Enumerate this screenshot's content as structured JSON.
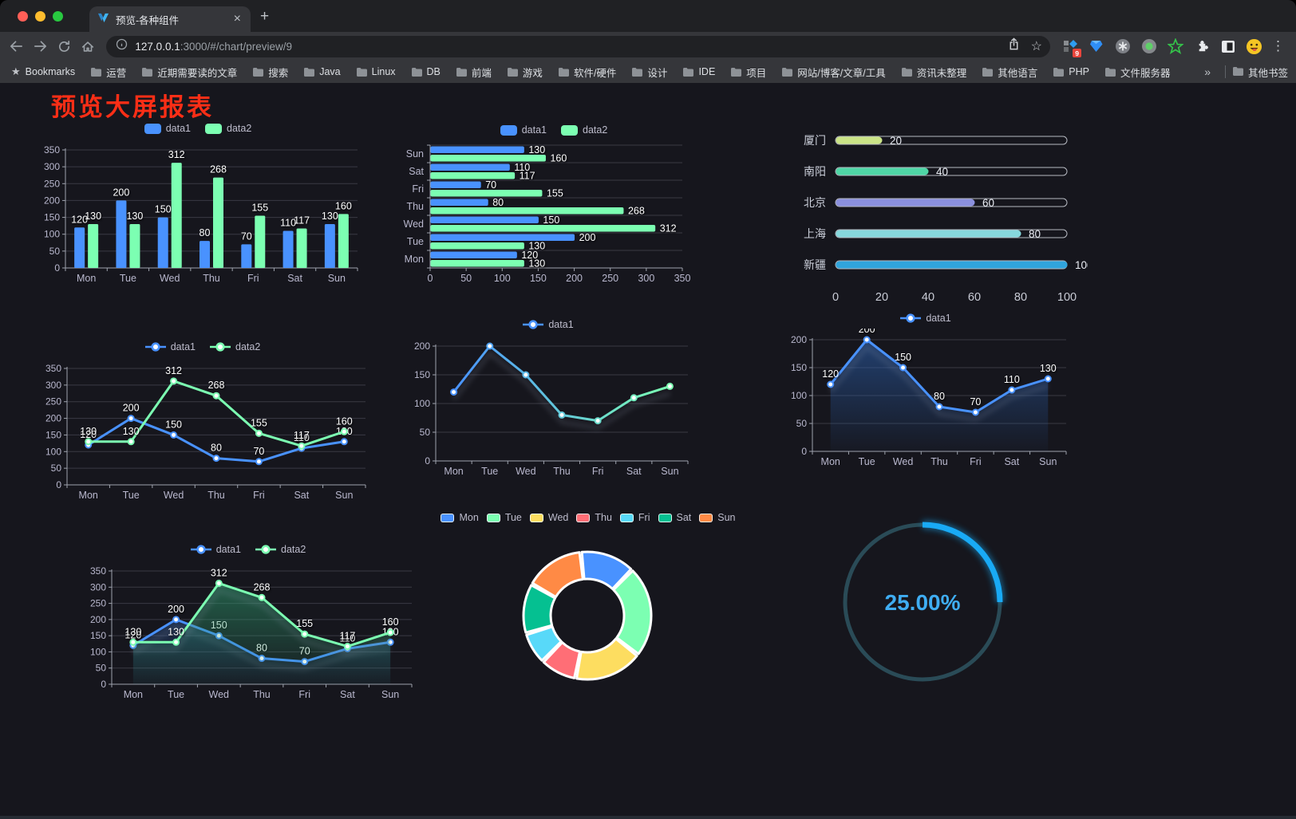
{
  "browser": {
    "tab_title": "预览-各种组件",
    "url_host": "127.0.0.1",
    "url_rest": ":3000/#/chart/preview/9",
    "extension_badge": "9",
    "traffic_colors": {
      "close": "#ff5f57",
      "minimize": "#febc2e",
      "zoom": "#28c840"
    }
  },
  "bookmarks": {
    "bookmarks_label": "Bookmarks",
    "folders": [
      "运营",
      "近期需要读的文章",
      "搜索",
      "Java",
      "Linux",
      "DB",
      "前端",
      "游戏",
      "软件/硬件",
      "设计",
      "IDE",
      "项目",
      "网站/博客/文章/工具",
      "资讯未整理",
      "其他语言",
      "PHP",
      "文件服务器"
    ],
    "overflow": "»",
    "other_label": "其他书签"
  },
  "page": {
    "title": "预览大屏报表",
    "title_color": "#fb2e16"
  },
  "theme": {
    "background": "#16161d",
    "axis_label": "#b9b8ce",
    "grid": "#3a3a44",
    "axis_line": "#9ea2ad",
    "value_label": "#ffffff",
    "legend_text": "#bdbccc"
  },
  "chart_data": [
    {
      "id": "grouped-bar",
      "type": "bar",
      "categories": [
        "Mon",
        "Tue",
        "Wed",
        "Thu",
        "Fri",
        "Sat",
        "Sun"
      ],
      "series": [
        {
          "name": "data1",
          "color": "#4992ff",
          "values": [
            120,
            200,
            150,
            80,
            70,
            110,
            130
          ]
        },
        {
          "name": "data2",
          "color": "#7cffb2",
          "values": [
            130,
            130,
            312,
            268,
            155,
            117,
            160
          ]
        }
      ],
      "ylim": [
        0,
        350
      ],
      "ytick": 50,
      "value_labels": true,
      "legend_position": "top"
    },
    {
      "id": "grouped-horizontal-bar",
      "type": "horizontal-bar",
      "categories": [
        "Mon",
        "Tue",
        "Wed",
        "Thu",
        "Fri",
        "Sat",
        "Sun"
      ],
      "series": [
        {
          "name": "data1",
          "color": "#4992ff",
          "values": [
            120,
            200,
            150,
            80,
            70,
            110,
            130
          ]
        },
        {
          "name": "data2",
          "color": "#7cffb2",
          "values": [
            130,
            130,
            312,
            268,
            155,
            117,
            160
          ]
        }
      ],
      "xlim": [
        0,
        350
      ],
      "xtick": 50,
      "value_labels": true,
      "legend_position": "top"
    },
    {
      "id": "city-progress",
      "type": "progress",
      "items": [
        {
          "label": "厦门",
          "value": 20,
          "color": "#cbe487"
        },
        {
          "label": "南阳",
          "value": 40,
          "color": "#4fd6a6"
        },
        {
          "label": "北京",
          "value": 60,
          "color": "#8b90de"
        },
        {
          "label": "上海",
          "value": 80,
          "color": "#86d8dd"
        },
        {
          "label": "新疆",
          "value": 100,
          "color": "#30a4dc"
        }
      ],
      "xlim": [
        0,
        100
      ],
      "xticks": [
        0,
        20,
        40,
        60,
        80,
        100
      ]
    },
    {
      "id": "dual-line",
      "type": "line",
      "categories": [
        "Mon",
        "Tue",
        "Wed",
        "Thu",
        "Fri",
        "Sat",
        "Sun"
      ],
      "series": [
        {
          "name": "data1",
          "color": "#4992ff",
          "values": [
            120,
            200,
            150,
            80,
            70,
            110,
            130
          ]
        },
        {
          "name": "data2",
          "color": "#7cffb2",
          "values": [
            130,
            130,
            312,
            268,
            155,
            117,
            160
          ]
        }
      ],
      "ylim": [
        0,
        350
      ],
      "ytick": 50,
      "value_labels": true,
      "markers": true
    },
    {
      "id": "gradient-line",
      "type": "line",
      "categories": [
        "Mon",
        "Tue",
        "Wed",
        "Thu",
        "Fri",
        "Sat",
        "Sun"
      ],
      "series": [
        {
          "name": "data1",
          "color": "#4992ff",
          "gradient": [
            "#4992ff",
            "#7cffb2"
          ],
          "values": [
            120,
            200,
            150,
            80,
            70,
            110,
            130
          ]
        }
      ],
      "ylim": [
        0,
        200
      ],
      "ytick": 50,
      "value_labels": false,
      "markers": true,
      "shadow": true
    },
    {
      "id": "single-area",
      "type": "area",
      "categories": [
        "Mon",
        "Tue",
        "Wed",
        "Thu",
        "Fri",
        "Sat",
        "Sun"
      ],
      "series": [
        {
          "name": "data1",
          "color": "#4992ff",
          "fill": "#2a5da8",
          "values": [
            120,
            200,
            150,
            80,
            70,
            110,
            130
          ]
        }
      ],
      "ylim": [
        0,
        200
      ],
      "ytick": 50,
      "value_labels": true,
      "markers": true,
      "shadow": true
    },
    {
      "id": "dual-area",
      "type": "area",
      "categories": [
        "Mon",
        "Tue",
        "Wed",
        "Thu",
        "Fri",
        "Sat",
        "Sun"
      ],
      "series": [
        {
          "name": "data1",
          "color": "#4992ff",
          "fill": "#2a5da8",
          "values": [
            120,
            200,
            150,
            80,
            70,
            110,
            130
          ]
        },
        {
          "name": "data2",
          "color": "#7cffb2",
          "fill": "#2f9e70",
          "values": [
            130,
            130,
            312,
            268,
            155,
            117,
            160
          ]
        }
      ],
      "ylim": [
        0,
        350
      ],
      "ytick": 50,
      "value_labels": true,
      "markers": true,
      "shadow": true
    },
    {
      "id": "week-donut",
      "type": "donut",
      "categories": [
        "Mon",
        "Tue",
        "Wed",
        "Thu",
        "Fri",
        "Sat",
        "Sun"
      ],
      "values": [
        120,
        200,
        150,
        80,
        70,
        110,
        130
      ],
      "colors": [
        "#4992ff",
        "#7cffb2",
        "#fddd60",
        "#ff6e76",
        "#58d9f9",
        "#05c091",
        "#ff8a45"
      ]
    },
    {
      "id": "percent-gauge",
      "type": "gauge",
      "value": 25,
      "display": "25.00%",
      "color": "#19aaf5",
      "track_color": "#2a4b57",
      "text_color": "#3fadf2"
    }
  ]
}
